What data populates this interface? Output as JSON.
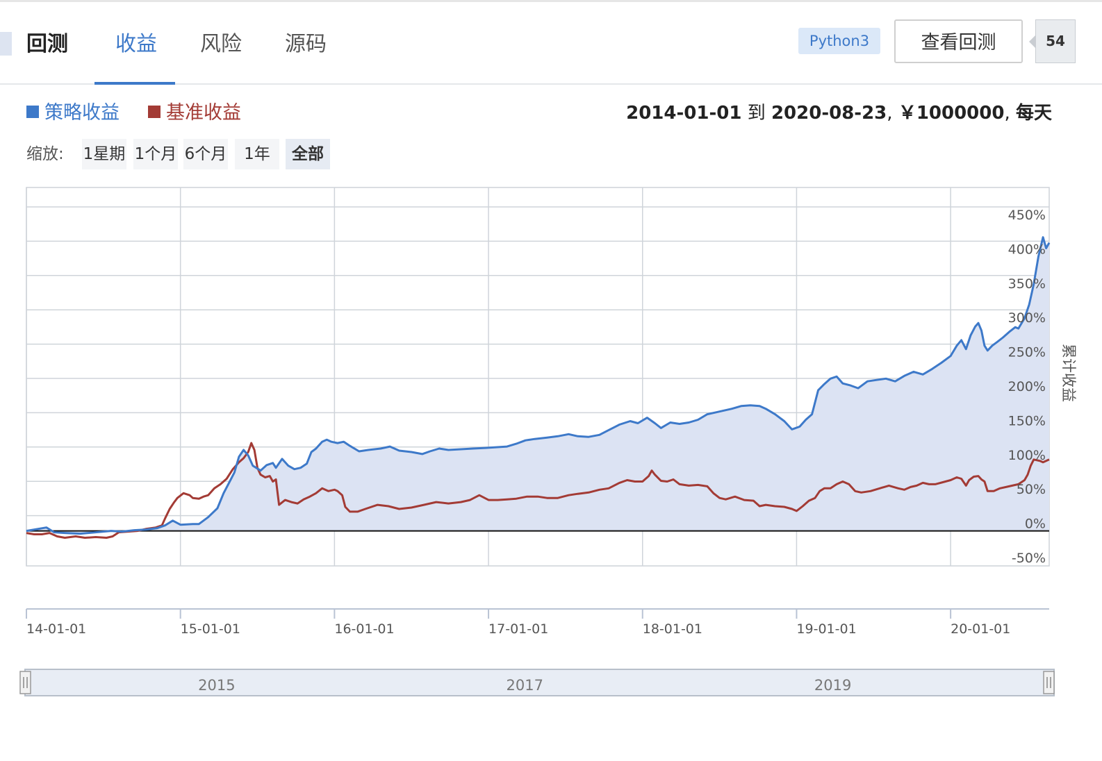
{
  "header": {
    "tabs": [
      {
        "label": "回测"
      },
      {
        "label": "收益"
      },
      {
        "label": "风险"
      },
      {
        "label": "源码"
      }
    ],
    "language_badge": "Python3",
    "view_button": "查看回测",
    "count": "54"
  },
  "legend": {
    "strategy_label": "策略收益",
    "benchmark_label": "基准收益",
    "strategy_color": "#3d79c9",
    "benchmark_color": "#a33b35"
  },
  "range_info": {
    "start": "2014-01-01",
    "to": "到",
    "end": "2020-08-23",
    "capital": "￥1000000",
    "frequency": "每天"
  },
  "zoom": {
    "label": "缩放:",
    "buttons": [
      "1星期",
      "1个月",
      "6个月",
      "1年",
      "全部"
    ],
    "active": "全部"
  },
  "chart_data": {
    "type": "line",
    "y_axis_title": "累计收益",
    "y_ticks": [
      "450%",
      "400%",
      "350%",
      "300%",
      "250%",
      "200%",
      "150%",
      "100%",
      "50%",
      "0%",
      "-50%"
    ],
    "ylim": [
      -50,
      450
    ],
    "xlim": [
      2014.0,
      2020.64
    ],
    "x_ticks": [
      {
        "label": "14-01-01",
        "x": 2014.0
      },
      {
        "label": "15-01-01",
        "x": 2015.0
      },
      {
        "label": "16-01-01",
        "x": 2016.0
      },
      {
        "label": "17-01-01",
        "x": 2017.0
      },
      {
        "label": "18-01-01",
        "x": 2018.0
      },
      {
        "label": "19-01-01",
        "x": 2019.0
      },
      {
        "label": "20-01-01",
        "x": 2020.0
      }
    ],
    "navigator_labels": [
      {
        "label": "2015",
        "x": 2015.1
      },
      {
        "label": "2017",
        "x": 2017.1
      },
      {
        "label": "2019",
        "x": 2019.1
      }
    ],
    "grid": true,
    "series": [
      {
        "name": "策略收益",
        "color": "#3d79c9",
        "fill": "#dce3f3",
        "points": [
          [
            2014.0,
            0
          ],
          [
            2014.08,
            3
          ],
          [
            2014.13,
            5
          ],
          [
            2014.18,
            -2
          ],
          [
            2014.25,
            -3
          ],
          [
            2014.35,
            -4
          ],
          [
            2014.45,
            -2
          ],
          [
            2014.55,
            0
          ],
          [
            2014.62,
            -1
          ],
          [
            2014.7,
            1
          ],
          [
            2014.78,
            2
          ],
          [
            2014.85,
            4
          ],
          [
            2014.9,
            8
          ],
          [
            2014.95,
            15
          ],
          [
            2015.0,
            9
          ],
          [
            2015.08,
            10
          ],
          [
            2015.12,
            10
          ],
          [
            2015.18,
            20
          ],
          [
            2015.24,
            33
          ],
          [
            2015.28,
            55
          ],
          [
            2015.32,
            72
          ],
          [
            2015.35,
            85
          ],
          [
            2015.38,
            108
          ],
          [
            2015.41,
            118
          ],
          [
            2015.44,
            110
          ],
          [
            2015.47,
            95
          ],
          [
            2015.52,
            88
          ],
          [
            2015.56,
            96
          ],
          [
            2015.6,
            99
          ],
          [
            2015.62,
            92
          ],
          [
            2015.66,
            105
          ],
          [
            2015.7,
            95
          ],
          [
            2015.74,
            90
          ],
          [
            2015.78,
            92
          ],
          [
            2015.82,
            98
          ],
          [
            2015.85,
            115
          ],
          [
            2015.88,
            120
          ],
          [
            2015.92,
            130
          ],
          [
            2015.95,
            133
          ],
          [
            2015.98,
            130
          ],
          [
            2016.02,
            128
          ],
          [
            2016.06,
            130
          ],
          [
            2016.1,
            124
          ],
          [
            2016.16,
            116
          ],
          [
            2016.22,
            118
          ],
          [
            2016.3,
            120
          ],
          [
            2016.36,
            123
          ],
          [
            2016.42,
            117
          ],
          [
            2016.5,
            115
          ],
          [
            2016.57,
            112
          ],
          [
            2016.62,
            116
          ],
          [
            2016.68,
            120
          ],
          [
            2016.74,
            118
          ],
          [
            2016.82,
            119
          ],
          [
            2016.9,
            120
          ],
          [
            2016.98,
            121
          ],
          [
            2017.05,
            122
          ],
          [
            2017.12,
            123
          ],
          [
            2017.18,
            127
          ],
          [
            2017.24,
            132
          ],
          [
            2017.3,
            134
          ],
          [
            2017.38,
            136
          ],
          [
            2017.45,
            138
          ],
          [
            2017.52,
            141
          ],
          [
            2017.58,
            138
          ],
          [
            2017.65,
            137
          ],
          [
            2017.72,
            140
          ],
          [
            2017.78,
            147
          ],
          [
            2017.85,
            155
          ],
          [
            2017.92,
            160
          ],
          [
            2017.97,
            157
          ],
          [
            2018.03,
            165
          ],
          [
            2018.08,
            157
          ],
          [
            2018.12,
            150
          ],
          [
            2018.18,
            158
          ],
          [
            2018.24,
            156
          ],
          [
            2018.3,
            158
          ],
          [
            2018.36,
            162
          ],
          [
            2018.42,
            170
          ],
          [
            2018.48,
            173
          ],
          [
            2018.52,
            175
          ],
          [
            2018.58,
            178
          ],
          [
            2018.64,
            182
          ],
          [
            2018.7,
            183
          ],
          [
            2018.76,
            182
          ],
          [
            2018.8,
            178
          ],
          [
            2018.86,
            170
          ],
          [
            2018.92,
            160
          ],
          [
            2018.97,
            148
          ],
          [
            2019.02,
            152
          ],
          [
            2019.06,
            162
          ],
          [
            2019.1,
            170
          ],
          [
            2019.14,
            205
          ],
          [
            2019.18,
            214
          ],
          [
            2019.22,
            222
          ],
          [
            2019.26,
            225
          ],
          [
            2019.3,
            215
          ],
          [
            2019.35,
            212
          ],
          [
            2019.4,
            208
          ],
          [
            2019.46,
            218
          ],
          [
            2019.52,
            220
          ],
          [
            2019.58,
            222
          ],
          [
            2019.64,
            218
          ],
          [
            2019.7,
            226
          ],
          [
            2019.76,
            232
          ],
          [
            2019.82,
            228
          ],
          [
            2019.88,
            236
          ],
          [
            2019.94,
            245
          ],
          [
            2020.0,
            255
          ],
          [
            2020.04,
            270
          ],
          [
            2020.07,
            278
          ],
          [
            2020.1,
            265
          ],
          [
            2020.13,
            285
          ],
          [
            2020.16,
            298
          ],
          [
            2020.18,
            303
          ],
          [
            2020.2,
            292
          ],
          [
            2020.22,
            270
          ],
          [
            2020.24,
            263
          ],
          [
            2020.27,
            270
          ],
          [
            2020.3,
            275
          ],
          [
            2020.34,
            282
          ],
          [
            2020.38,
            290
          ],
          [
            2020.42,
            297
          ],
          [
            2020.44,
            295
          ],
          [
            2020.48,
            310
          ],
          [
            2020.51,
            330
          ],
          [
            2020.54,
            360
          ],
          [
            2020.57,
            400
          ],
          [
            2020.6,
            428
          ],
          [
            2020.62,
            412
          ],
          [
            2020.64,
            420
          ]
        ]
      },
      {
        "name": "基准收益",
        "color": "#a33b35",
        "points": [
          [
            2014.0,
            -3
          ],
          [
            2014.05,
            -5
          ],
          [
            2014.1,
            -5
          ],
          [
            2014.15,
            -3
          ],
          [
            2014.2,
            -8
          ],
          [
            2014.25,
            -10
          ],
          [
            2014.32,
            -8
          ],
          [
            2014.38,
            -10
          ],
          [
            2014.45,
            -9
          ],
          [
            2014.52,
            -10
          ],
          [
            2014.56,
            -8
          ],
          [
            2014.6,
            -2
          ],
          [
            2014.66,
            -1
          ],
          [
            2014.72,
            0
          ],
          [
            2014.78,
            3
          ],
          [
            2014.84,
            5
          ],
          [
            2014.88,
            8
          ],
          [
            2014.9,
            18
          ],
          [
            2014.93,
            32
          ],
          [
            2014.96,
            42
          ],
          [
            2014.98,
            48
          ],
          [
            2015.02,
            55
          ],
          [
            2015.06,
            52
          ],
          [
            2015.08,
            48
          ],
          [
            2015.12,
            47
          ],
          [
            2015.15,
            50
          ],
          [
            2015.18,
            52
          ],
          [
            2015.22,
            62
          ],
          [
            2015.26,
            68
          ],
          [
            2015.3,
            76
          ],
          [
            2015.34,
            90
          ],
          [
            2015.38,
            100
          ],
          [
            2015.41,
            106
          ],
          [
            2015.44,
            115
          ],
          [
            2015.46,
            128
          ],
          [
            2015.48,
            118
          ],
          [
            2015.5,
            92
          ],
          [
            2015.52,
            82
          ],
          [
            2015.55,
            78
          ],
          [
            2015.58,
            80
          ],
          [
            2015.6,
            72
          ],
          [
            2015.62,
            75
          ],
          [
            2015.64,
            38
          ],
          [
            2015.68,
            45
          ],
          [
            2015.72,
            42
          ],
          [
            2015.76,
            40
          ],
          [
            2015.8,
            46
          ],
          [
            2015.84,
            50
          ],
          [
            2015.88,
            55
          ],
          [
            2015.92,
            62
          ],
          [
            2015.96,
            58
          ],
          [
            2016.0,
            60
          ],
          [
            2016.02,
            58
          ],
          [
            2016.05,
            52
          ],
          [
            2016.07,
            35
          ],
          [
            2016.1,
            28
          ],
          [
            2016.15,
            28
          ],
          [
            2016.2,
            32
          ],
          [
            2016.28,
            38
          ],
          [
            2016.35,
            36
          ],
          [
            2016.42,
            32
          ],
          [
            2016.5,
            34
          ],
          [
            2016.58,
            38
          ],
          [
            2016.66,
            42
          ],
          [
            2016.74,
            40
          ],
          [
            2016.82,
            42
          ],
          [
            2016.88,
            45
          ],
          [
            2016.94,
            52
          ],
          [
            2017.0,
            45
          ],
          [
            2017.06,
            45
          ],
          [
            2017.12,
            46
          ],
          [
            2017.18,
            47
          ],
          [
            2017.25,
            50
          ],
          [
            2017.32,
            50
          ],
          [
            2017.38,
            48
          ],
          [
            2017.45,
            48
          ],
          [
            2017.52,
            52
          ],
          [
            2017.58,
            54
          ],
          [
            2017.65,
            56
          ],
          [
            2017.72,
            60
          ],
          [
            2017.78,
            62
          ],
          [
            2017.85,
            70
          ],
          [
            2017.9,
            74
          ],
          [
            2017.95,
            72
          ],
          [
            2018.0,
            72
          ],
          [
            2018.04,
            80
          ],
          [
            2018.06,
            88
          ],
          [
            2018.08,
            82
          ],
          [
            2018.12,
            73
          ],
          [
            2018.16,
            72
          ],
          [
            2018.2,
            75
          ],
          [
            2018.24,
            68
          ],
          [
            2018.3,
            66
          ],
          [
            2018.36,
            67
          ],
          [
            2018.42,
            65
          ],
          [
            2018.46,
            55
          ],
          [
            2018.5,
            48
          ],
          [
            2018.54,
            46
          ],
          [
            2018.6,
            50
          ],
          [
            2018.66,
            45
          ],
          [
            2018.72,
            44
          ],
          [
            2018.76,
            36
          ],
          [
            2018.8,
            38
          ],
          [
            2018.86,
            36
          ],
          [
            2018.92,
            35
          ],
          [
            2018.97,
            32
          ],
          [
            2019.0,
            29
          ],
          [
            2019.04,
            36
          ],
          [
            2019.08,
            44
          ],
          [
            2019.12,
            48
          ],
          [
            2019.15,
            58
          ],
          [
            2019.18,
            62
          ],
          [
            2019.22,
            62
          ],
          [
            2019.26,
            68
          ],
          [
            2019.3,
            72
          ],
          [
            2019.34,
            68
          ],
          [
            2019.38,
            58
          ],
          [
            2019.42,
            56
          ],
          [
            2019.48,
            58
          ],
          [
            2019.54,
            62
          ],
          [
            2019.6,
            66
          ],
          [
            2019.66,
            62
          ],
          [
            2019.7,
            60
          ],
          [
            2019.74,
            64
          ],
          [
            2019.78,
            66
          ],
          [
            2019.82,
            70
          ],
          [
            2019.86,
            68
          ],
          [
            2019.9,
            68
          ],
          [
            2019.95,
            71
          ],
          [
            2020.0,
            74
          ],
          [
            2020.04,
            78
          ],
          [
            2020.07,
            76
          ],
          [
            2020.1,
            66
          ],
          [
            2020.12,
            74
          ],
          [
            2020.15,
            79
          ],
          [
            2020.18,
            80
          ],
          [
            2020.2,
            75
          ],
          [
            2020.22,
            72
          ],
          [
            2020.24,
            58
          ],
          [
            2020.28,
            58
          ],
          [
            2020.32,
            62
          ],
          [
            2020.36,
            64
          ],
          [
            2020.4,
            66
          ],
          [
            2020.44,
            68
          ],
          [
            2020.48,
            74
          ],
          [
            2020.5,
            82
          ],
          [
            2020.52,
            95
          ],
          [
            2020.54,
            104
          ],
          [
            2020.58,
            102
          ],
          [
            2020.6,
            100
          ],
          [
            2020.62,
            102
          ],
          [
            2020.64,
            104
          ]
        ]
      }
    ]
  }
}
